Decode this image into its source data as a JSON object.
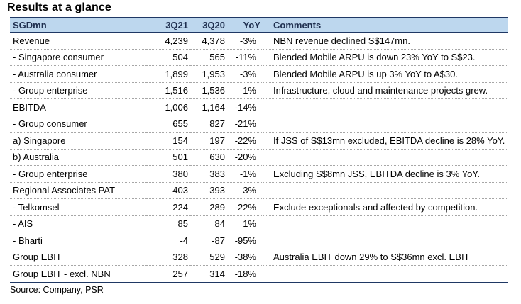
{
  "title": "Results at a glance",
  "table": {
    "headers": {
      "label": "SGDmn",
      "q21": "3Q21",
      "q20": "3Q20",
      "yoy": "YoY",
      "comment": "Comments"
    },
    "rows": [
      {
        "label": "Revenue",
        "q21": "4,239",
        "q20": "4,378",
        "yoy": "-3%",
        "comment": "NBN revenue declined S$147mn."
      },
      {
        "label": " - Singapore consumer",
        "q21": "504",
        "q20": "565",
        "yoy": "-11%",
        "comment": "Blended Mobile ARPU is down 23% YoY to S$23."
      },
      {
        "label": " - Australia consumer",
        "q21": "1,899",
        "q20": "1,953",
        "yoy": "-3%",
        "comment": "Blended Mobile ARPU is up 3% YoY to A$30."
      },
      {
        "label": " - Group enterprise",
        "q21": "1,516",
        "q20": "1,536",
        "yoy": "-1%",
        "comment": "Infrastructure, cloud and maintenance projects grew."
      },
      {
        "label": "EBITDA",
        "q21": "1,006",
        "q20": "1,164",
        "yoy": "-14%",
        "comment": ""
      },
      {
        "label": " - Group consumer",
        "q21": "655",
        "q20": "827",
        "yoy": "-21%",
        "comment": ""
      },
      {
        "label": "a) Singapore",
        "q21": "154",
        "q20": "197",
        "yoy": "-22%",
        "comment": "If JSS of S$13mn excluded, EBITDA decline is 28% YoY."
      },
      {
        "label": "b) Australia",
        "q21": "501",
        "q20": "630",
        "yoy": "-20%",
        "comment": ""
      },
      {
        "label": " - Group enterprise",
        "q21": "380",
        "q20": "383",
        "yoy": "-1%",
        "comment": "Excluding S$8mn JSS, EBITDA decline is 3% YoY."
      },
      {
        "label": "Regional Associates PAT",
        "q21": "403",
        "q20": "393",
        "yoy": "3%",
        "comment": ""
      },
      {
        "label": " - Telkomsel",
        "q21": "224",
        "q20": "289",
        "yoy": "-22%",
        "comment": "Exclude exceptionals and affected by competition."
      },
      {
        "label": " - AIS",
        "q21": "85",
        "q20": "84",
        "yoy": "1%",
        "comment": ""
      },
      {
        "label": " - Bharti",
        "q21": "-4",
        "q20": "-87",
        "yoy": "-95%",
        "comment": ""
      },
      {
        "label": "Group EBIT",
        "q21": "328",
        "q20": "529",
        "yoy": "-38%",
        "comment": "Australia EBIT down 29% to S$36mn excl. EBIT"
      },
      {
        "label": "Group EBIT - excl. NBN",
        "q21": "257",
        "q20": "314",
        "yoy": "-18%",
        "comment": ""
      }
    ]
  },
  "source": "Source: Company, PSR"
}
